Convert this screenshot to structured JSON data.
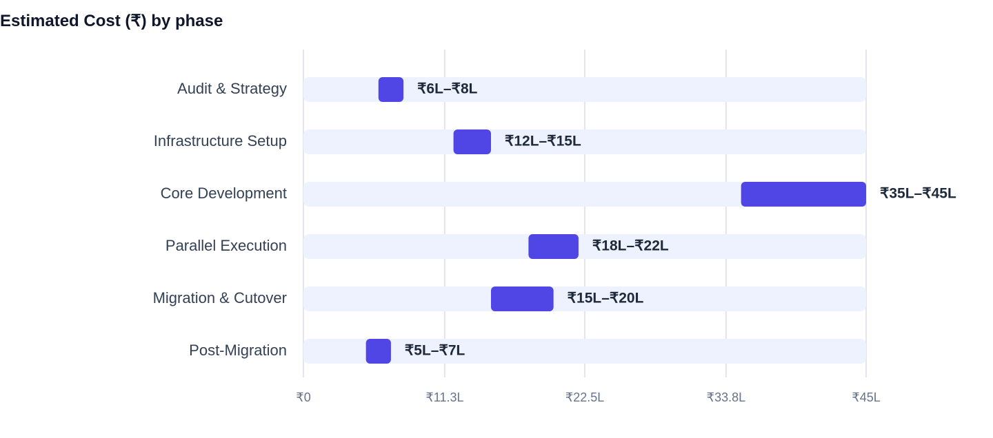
{
  "chart_data": {
    "type": "bar",
    "orientation": "horizontal",
    "title": "Estimated Cost (₹) by phase",
    "xlabel": "",
    "ylabel": "",
    "xlim": [
      0,
      45
    ],
    "x_unit": "Lakh ₹",
    "xticks": [
      0,
      11.3,
      22.5,
      33.8,
      45
    ],
    "xtick_labels": [
      "₹0",
      "₹11.3L",
      "₹22.5L",
      "₹33.8L",
      "₹45L"
    ],
    "grid": "vertical",
    "legend": "none",
    "categories": [
      "Audit & Strategy",
      "Infrastructure Setup",
      "Core Development",
      "Parallel Execution",
      "Migration & Cutover",
      "Post-Migration"
    ],
    "ranges": [
      {
        "low": 6,
        "high": 8,
        "label": "₹6L–₹8L"
      },
      {
        "low": 12,
        "high": 15,
        "label": "₹12L–₹15L"
      },
      {
        "low": 35,
        "high": 45,
        "label": "₹35L–₹45L"
      },
      {
        "low": 18,
        "high": 22,
        "label": "₹18L–₹22L"
      },
      {
        "low": 15,
        "high": 20,
        "label": "₹15L–₹20L"
      },
      {
        "low": 5,
        "high": 7,
        "label": "₹5L–₹7L"
      }
    ],
    "colors": {
      "bar": "#4f46e5",
      "track": "#edf2fe",
      "grid": "#e2e5ea",
      "title": "#0f172a",
      "category_text": "#334155",
      "value_text": "#1e293b",
      "tick_text": "#64748b"
    }
  }
}
